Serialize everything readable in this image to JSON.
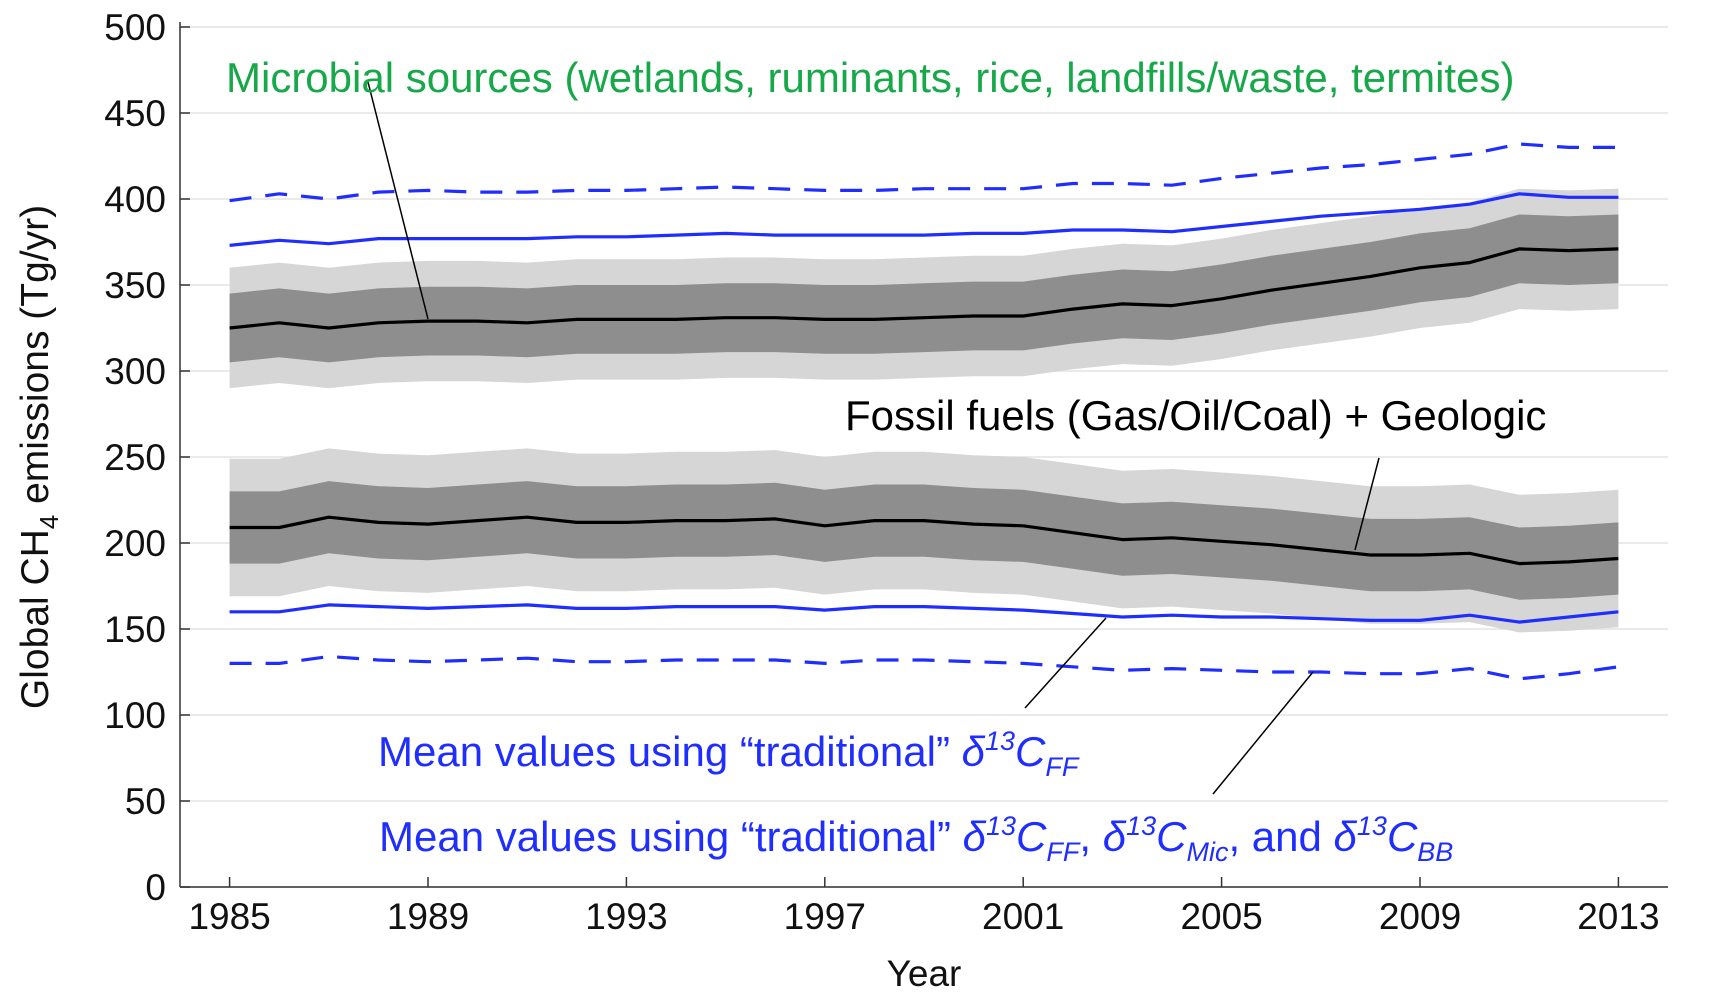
{
  "chart_data": {
    "type": "band-line",
    "xlabel": "Year",
    "ylabel": [
      "Global CH",
      "4",
      " emissions  (Tg/yr)"
    ],
    "x": [
      1985,
      1986,
      1987,
      1988,
      1989,
      1990,
      1991,
      1992,
      1993,
      1994,
      1995,
      1996,
      1997,
      1998,
      1999,
      2000,
      2001,
      2002,
      2003,
      2004,
      2005,
      2006,
      2007,
      2008,
      2009,
      2010,
      2011,
      2012,
      2013
    ],
    "xlim": [
      1984,
      2014
    ],
    "xticks": [
      1985,
      1989,
      1993,
      1997,
      2001,
      2005,
      2009,
      2013
    ],
    "ylim": [
      0,
      500
    ],
    "yticks": [
      0,
      50,
      100,
      150,
      200,
      250,
      300,
      350,
      400,
      450,
      500
    ],
    "grid": true,
    "bands": [
      {
        "color": "#d6d6d6",
        "upper": [
          360,
          363,
          360,
          363,
          364,
          364,
          363,
          365,
          365,
          365,
          366,
          366,
          365,
          365,
          366,
          367,
          367,
          371,
          374,
          373,
          377,
          382,
          386,
          390,
          395,
          398,
          406,
          405,
          406
        ],
        "lower": [
          290,
          293,
          290,
          293,
          294,
          294,
          293,
          295,
          295,
          295,
          296,
          296,
          295,
          295,
          296,
          297,
          297,
          301,
          304,
          303,
          307,
          312,
          316,
          320,
          325,
          328,
          336,
          335,
          336
        ]
      },
      {
        "color": "#8e8e8e",
        "upper": [
          345,
          348,
          345,
          348,
          349,
          349,
          348,
          350,
          350,
          350,
          351,
          351,
          350,
          350,
          351,
          352,
          352,
          356,
          359,
          358,
          362,
          367,
          371,
          375,
          380,
          383,
          391,
          390,
          391
        ],
        "lower": [
          305,
          308,
          305,
          308,
          309,
          309,
          308,
          310,
          310,
          310,
          311,
          311,
          310,
          310,
          311,
          312,
          312,
          316,
          319,
          318,
          322,
          327,
          331,
          335,
          340,
          343,
          351,
          350,
          351
        ]
      },
      {
        "color": "#d6d6d6",
        "upper": [
          249,
          249,
          255,
          252,
          251,
          253,
          255,
          252,
          252,
          253,
          253,
          254,
          250,
          253,
          253,
          251,
          250,
          246,
          242,
          243,
          241,
          239,
          236,
          233,
          233,
          234,
          228,
          229,
          231
        ],
        "lower": [
          169,
          169,
          175,
          172,
          171,
          173,
          175,
          172,
          172,
          173,
          173,
          174,
          170,
          173,
          173,
          171,
          170,
          166,
          162,
          163,
          161,
          159,
          156,
          153,
          153,
          154,
          148,
          149,
          151
        ]
      },
      {
        "color": "#8e8e8e",
        "upper": [
          230,
          230,
          236,
          233,
          232,
          234,
          236,
          233,
          233,
          234,
          234,
          235,
          231,
          234,
          234,
          232,
          231,
          227,
          223,
          224,
          222,
          220,
          217,
          214,
          214,
          215,
          209,
          210,
          212
        ],
        "lower": [
          188,
          188,
          194,
          191,
          190,
          192,
          194,
          191,
          191,
          192,
          192,
          193,
          189,
          192,
          192,
          190,
          189,
          185,
          181,
          182,
          180,
          178,
          175,
          172,
          172,
          173,
          167,
          168,
          170
        ]
      }
    ],
    "series": [
      {
        "color": "#1f2eff",
        "dashed": true,
        "values": [
          399,
          403,
          400,
          404,
          405,
          404,
          404,
          405,
          405,
          406,
          407,
          406,
          405,
          405,
          406,
          406,
          406,
          409,
          409,
          408,
          412,
          415,
          418,
          420,
          423,
          426,
          432,
          430,
          430
        ]
      },
      {
        "color": "#1f2eff",
        "dashed": false,
        "values": [
          373,
          376,
          374,
          377,
          377,
          377,
          377,
          378,
          378,
          379,
          380,
          379,
          379,
          379,
          379,
          380,
          380,
          382,
          382,
          381,
          384,
          387,
          390,
          392,
          394,
          397,
          403,
          401,
          401
        ]
      },
      {
        "color": "#1f2eff",
        "dashed": false,
        "values": [
          160,
          160,
          164,
          163,
          162,
          163,
          164,
          162,
          162,
          163,
          163,
          163,
          161,
          163,
          163,
          162,
          161,
          159,
          157,
          158,
          157,
          157,
          156,
          155,
          155,
          158,
          154,
          157,
          160
        ]
      },
      {
        "color": "#1f2eff",
        "dashed": true,
        "values": [
          130,
          130,
          134,
          132,
          131,
          132,
          133,
          131,
          131,
          132,
          132,
          132,
          130,
          132,
          132,
          131,
          130,
          128,
          126,
          127,
          126,
          125,
          125,
          124,
          124,
          127,
          121,
          124,
          128
        ]
      },
      {
        "color": "#000000",
        "dashed": false,
        "values": [
          325,
          328,
          325,
          328,
          329,
          329,
          328,
          330,
          330,
          330,
          331,
          331,
          330,
          330,
          331,
          332,
          332,
          336,
          339,
          338,
          342,
          347,
          351,
          355,
          360,
          363,
          371,
          370,
          371
        ]
      },
      {
        "color": "#000000",
        "dashed": false,
        "values": [
          209,
          209,
          215,
          212,
          211,
          213,
          215,
          212,
          212,
          213,
          213,
          214,
          210,
          213,
          213,
          211,
          210,
          206,
          202,
          203,
          201,
          199,
          196,
          193,
          193,
          194,
          188,
          189,
          191
        ]
      }
    ],
    "annotations": [
      {
        "color": "#17a84a",
        "text": [
          "Microbial sources (wetlands, ruminants, rice, landfills/waste, termites)"
        ]
      },
      {
        "color": "#000000",
        "text": [
          "Fossil fuels (Gas/Oil/Coal) + Geologic"
        ]
      },
      {
        "color": "#1f2eff",
        "text": [
          "Mean values using “traditional” ",
          "δ",
          "13",
          "C",
          "FF"
        ]
      },
      {
        "color": "#1f2eff",
        "text": [
          "Mean values using “traditional” ",
          "δ",
          "13",
          "C",
          "FF",
          ", ",
          "δ",
          "13",
          "C",
          "Mic",
          ", and ",
          "δ",
          "13",
          "C",
          "BB"
        ]
      }
    ]
  }
}
